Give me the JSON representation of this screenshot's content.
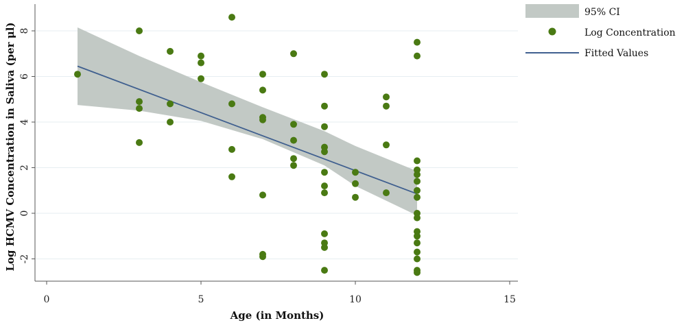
{
  "chart_data": {
    "type": "scatter",
    "title": "",
    "xlabel": "Age (in Months)",
    "ylabel": "Log HCMV Concentration in Saliva (per μl)",
    "xlim": [
      0,
      15
    ],
    "ylim": [
      -3,
      9
    ],
    "xticks": [
      0,
      5,
      10,
      15
    ],
    "yticks": [
      -2,
      0,
      2,
      4,
      6,
      8
    ],
    "ytick_labels": [
      "-2",
      "0",
      "2",
      "4",
      "6",
      "8"
    ],
    "grid": "horizontal",
    "legend_position": "right",
    "legend": [
      {
        "label": "95% CI",
        "kind": "band"
      },
      {
        "label": "Log Concentration",
        "kind": "marker"
      },
      {
        "label": "Fitted Values",
        "kind": "line"
      }
    ],
    "colors": {
      "points": "#4a7a13",
      "line": "#3f5f8f",
      "band": "#c2c9c5",
      "grid": "#e6eef1",
      "axis": "#555555"
    },
    "series": [
      {
        "name": "Log Concentration",
        "kind": "scatter",
        "points": [
          [
            1,
            6.1
          ],
          [
            3,
            8.0
          ],
          [
            3,
            4.9
          ],
          [
            3,
            4.6
          ],
          [
            3,
            3.1
          ],
          [
            4,
            7.1
          ],
          [
            4,
            4.8
          ],
          [
            4,
            4.0
          ],
          [
            5,
            6.9
          ],
          [
            5,
            6.6
          ],
          [
            5,
            5.9
          ],
          [
            6,
            8.6
          ],
          [
            6,
            4.8
          ],
          [
            6,
            2.8
          ],
          [
            6,
            1.6
          ],
          [
            7,
            6.1
          ],
          [
            7,
            5.4
          ],
          [
            7,
            4.2
          ],
          [
            7,
            4.1
          ],
          [
            7,
            0.8
          ],
          [
            7,
            -1.8
          ],
          [
            7,
            -1.9
          ],
          [
            8,
            7.0
          ],
          [
            8,
            3.9
          ],
          [
            8,
            3.2
          ],
          [
            8,
            2.4
          ],
          [
            8,
            2.1
          ],
          [
            9,
            6.1
          ],
          [
            9,
            4.7
          ],
          [
            9,
            3.8
          ],
          [
            9,
            2.9
          ],
          [
            9,
            2.7
          ],
          [
            9,
            1.8
          ],
          [
            9,
            1.2
          ],
          [
            9,
            0.9
          ],
          [
            9,
            -0.9
          ],
          [
            9,
            -1.3
          ],
          [
            9,
            -1.5
          ],
          [
            9,
            -2.5
          ],
          [
            10,
            1.8
          ],
          [
            10,
            1.3
          ],
          [
            10,
            0.7
          ],
          [
            11,
            5.1
          ],
          [
            11,
            4.7
          ],
          [
            11,
            3.0
          ],
          [
            11,
            0.9
          ],
          [
            12,
            7.5
          ],
          [
            12,
            6.9
          ],
          [
            12,
            2.3
          ],
          [
            12,
            1.9
          ],
          [
            12,
            1.7
          ],
          [
            12,
            1.4
          ],
          [
            12,
            1.0
          ],
          [
            12,
            0.7
          ],
          [
            12,
            0.0
          ],
          [
            12,
            -0.2
          ],
          [
            12,
            -0.8
          ],
          [
            12,
            -1.0
          ],
          [
            12,
            -1.3
          ],
          [
            12,
            -1.7
          ],
          [
            12,
            -2.0
          ],
          [
            12,
            -2.5
          ],
          [
            12,
            -2.6
          ]
        ]
      },
      {
        "name": "Fitted Values",
        "kind": "line",
        "points": [
          [
            1,
            6.45
          ],
          [
            12,
            0.85
          ]
        ]
      },
      {
        "name": "95% CI",
        "kind": "band",
        "x": [
          1,
          3,
          5,
          7,
          9,
          10,
          12
        ],
        "upper": [
          8.15,
          6.9,
          5.75,
          4.65,
          3.6,
          2.95,
          1.85
        ],
        "lower": [
          4.75,
          4.5,
          4.05,
          3.25,
          2.1,
          1.2,
          -0.1
        ]
      }
    ]
  }
}
